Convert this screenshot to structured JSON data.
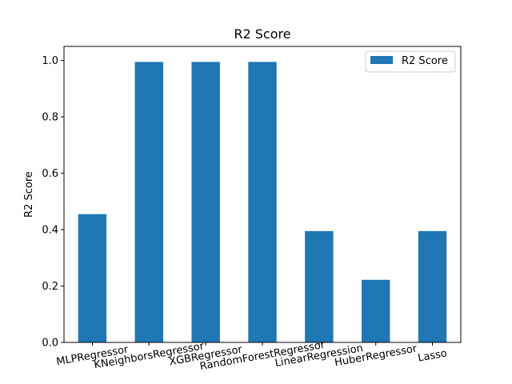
{
  "chart_data": {
    "type": "bar",
    "title": "R2 Score",
    "xlabel": "",
    "ylabel": "R2 Score",
    "ylim": [
      0,
      1.05
    ],
    "yticks": [
      0.0,
      0.2,
      0.4,
      0.6,
      0.8,
      1.0
    ],
    "ytick_labels": [
      "0.0",
      "0.2",
      "0.4",
      "0.6",
      "0.8",
      "1.0"
    ],
    "categories": [
      "MLPRegressor",
      "KNeighborsRegressor",
      "XGBRegressor",
      "RandomForestRegressor",
      "LinearRegression",
      "HuberRegressor",
      "Lasso"
    ],
    "series": [
      {
        "name": "R2 Score",
        "color": "#1f77b4",
        "values": [
          0.455,
          0.995,
          0.995,
          0.995,
          0.395,
          0.222,
          0.395
        ]
      }
    ],
    "legend": {
      "position": "top-right",
      "label": "R2 Score"
    },
    "grid": false
  }
}
